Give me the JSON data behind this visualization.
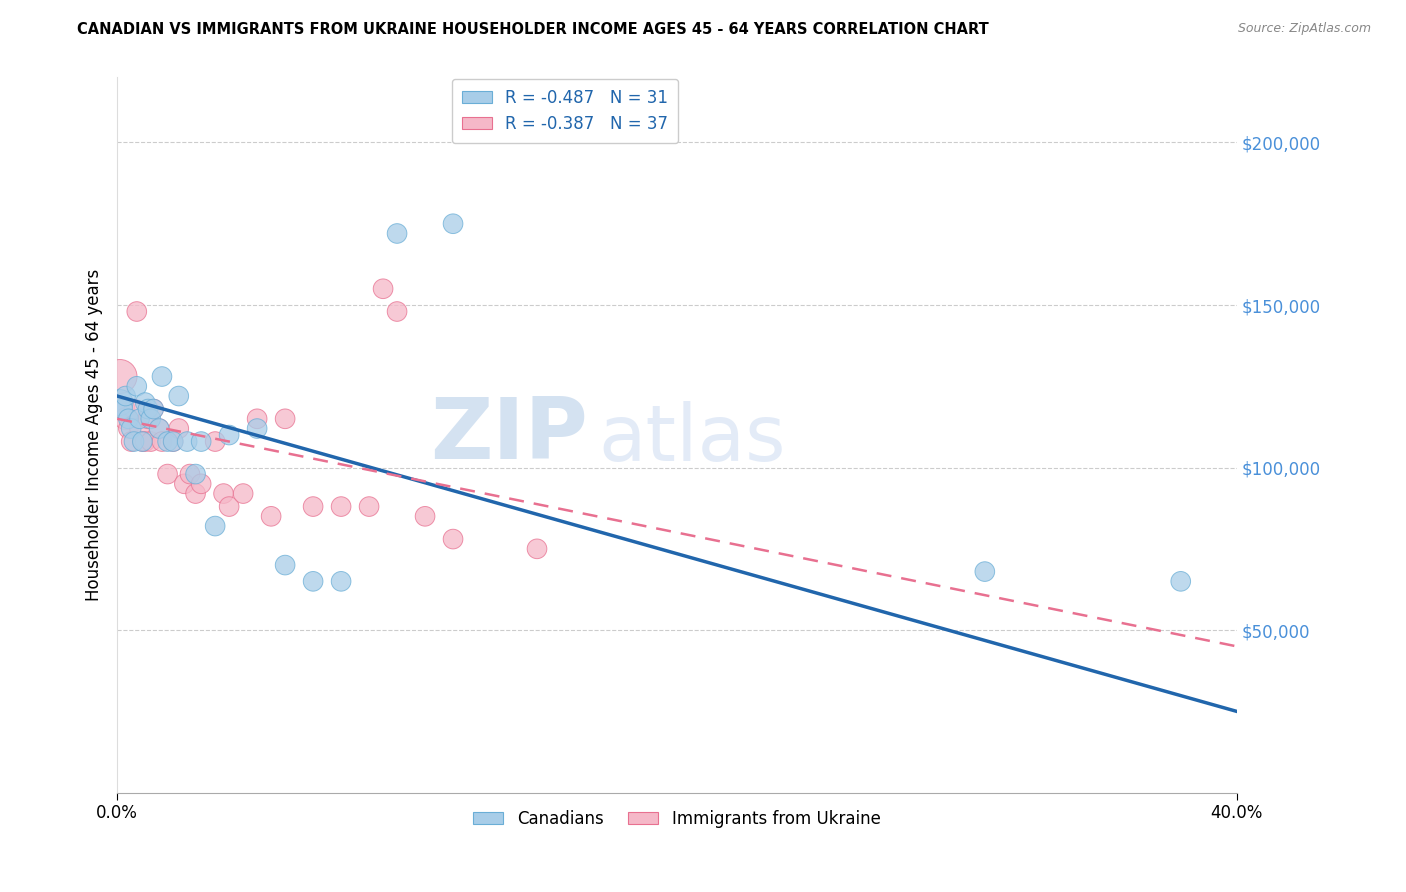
{
  "title": "CANADIAN VS IMMIGRANTS FROM UKRAINE HOUSEHOLDER INCOME AGES 45 - 64 YEARS CORRELATION CHART",
  "source": "Source: ZipAtlas.com",
  "ylabel": "Householder Income Ages 45 - 64 years",
  "ytick_labels": [
    "$50,000",
    "$100,000",
    "$150,000",
    "$200,000"
  ],
  "ytick_values": [
    50000,
    100000,
    150000,
    200000
  ],
  "legend_entry1": "R = -0.487   N = 31",
  "legend_entry2": "R = -0.387   N = 37",
  "watermark_zip": "ZIP",
  "watermark_atlas": "atlas",
  "canadian_color": "#a8cde8",
  "ukraine_color": "#f5b8c8",
  "canadian_edge": "#6aaed6",
  "ukraine_edge": "#e87090",
  "line_canadian_color": "#2166ac",
  "line_ukraine_color": "#e87090",
  "ytick_color": "#4a90d9",
  "canadians_label": "Canadians",
  "ukraine_label": "Immigrants from Ukraine",
  "xlim": [
    0.0,
    0.4
  ],
  "ylim": [
    0,
    220000
  ],
  "canadian_x": [
    0.001,
    0.002,
    0.003,
    0.004,
    0.005,
    0.006,
    0.007,
    0.008,
    0.009,
    0.01,
    0.011,
    0.012,
    0.013,
    0.015,
    0.016,
    0.018,
    0.02,
    0.022,
    0.025,
    0.028,
    0.03,
    0.035,
    0.04,
    0.05,
    0.06,
    0.07,
    0.08,
    0.1,
    0.12,
    0.31,
    0.38
  ],
  "canadian_y": [
    120000,
    118000,
    122000,
    115000,
    112000,
    108000,
    125000,
    115000,
    108000,
    120000,
    118000,
    115000,
    118000,
    112000,
    128000,
    108000,
    108000,
    122000,
    108000,
    98000,
    108000,
    82000,
    110000,
    112000,
    70000,
    65000,
    65000,
    172000,
    175000,
    68000,
    65000
  ],
  "ukraine_x": [
    0.001,
    0.002,
    0.003,
    0.004,
    0.005,
    0.006,
    0.007,
    0.008,
    0.009,
    0.01,
    0.011,
    0.012,
    0.013,
    0.015,
    0.016,
    0.018,
    0.02,
    0.022,
    0.024,
    0.026,
    0.028,
    0.03,
    0.035,
    0.038,
    0.04,
    0.045,
    0.05,
    0.055,
    0.06,
    0.07,
    0.08,
    0.09,
    0.095,
    0.1,
    0.11,
    0.12,
    0.15
  ],
  "ukraine_y": [
    128000,
    118000,
    115000,
    112000,
    108000,
    118000,
    148000,
    112000,
    108000,
    108000,
    115000,
    108000,
    118000,
    112000,
    108000,
    98000,
    108000,
    112000,
    95000,
    98000,
    92000,
    95000,
    108000,
    92000,
    88000,
    92000,
    115000,
    85000,
    115000,
    88000,
    88000,
    88000,
    155000,
    148000,
    85000,
    78000,
    75000
  ],
  "canadian_size": [
    350,
    200,
    200,
    200,
    200,
    200,
    200,
    200,
    200,
    200,
    200,
    200,
    200,
    200,
    200,
    200,
    200,
    200,
    200,
    200,
    200,
    200,
    200,
    200,
    200,
    200,
    200,
    200,
    200,
    200,
    200
  ],
  "ukraine_size": [
    600,
    300,
    250,
    200,
    200,
    200,
    200,
    200,
    200,
    200,
    200,
    200,
    200,
    200,
    200,
    200,
    200,
    200,
    200,
    200,
    200,
    200,
    200,
    200,
    200,
    200,
    200,
    200,
    200,
    200,
    200,
    200,
    200,
    200,
    200,
    200,
    200
  ],
  "line_can_x0": 0.0,
  "line_can_y0": 122000,
  "line_can_x1": 0.4,
  "line_can_y1": 25000,
  "line_uk_x0": 0.0,
  "line_uk_y0": 115000,
  "line_uk_x1": 0.4,
  "line_uk_y1": 45000
}
